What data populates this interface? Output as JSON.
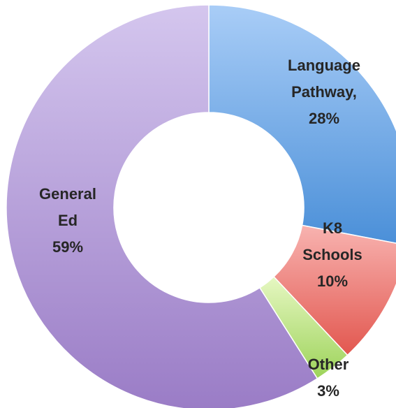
{
  "chart_data": {
    "type": "pie",
    "style": "donut",
    "slices": [
      {
        "name": "Language Pathway",
        "value": 28,
        "label_lines": [
          "Language",
          "Pathway,",
          "28%"
        ],
        "color_light": "#a9cdf7",
        "color_dark": "#4a8fd8"
      },
      {
        "name": "K8 Schools",
        "value": 10,
        "label_lines": [
          "K8",
          "Schools",
          "10%"
        ],
        "color_light": "#f8b3b0",
        "color_dark": "#e2574f"
      },
      {
        "name": "Other",
        "value": 3,
        "label_lines": [
          "Other",
          "3%"
        ],
        "color_light": "#e6f7c2",
        "color_dark": "#9dd35a"
      },
      {
        "name": "General Ed",
        "value": 59,
        "label_lines": [
          "General",
          "Ed",
          "59%"
        ],
        "color_light": "#d4c6ee",
        "color_dark": "#9a7cc6"
      }
    ],
    "legend": "none",
    "title": ""
  }
}
